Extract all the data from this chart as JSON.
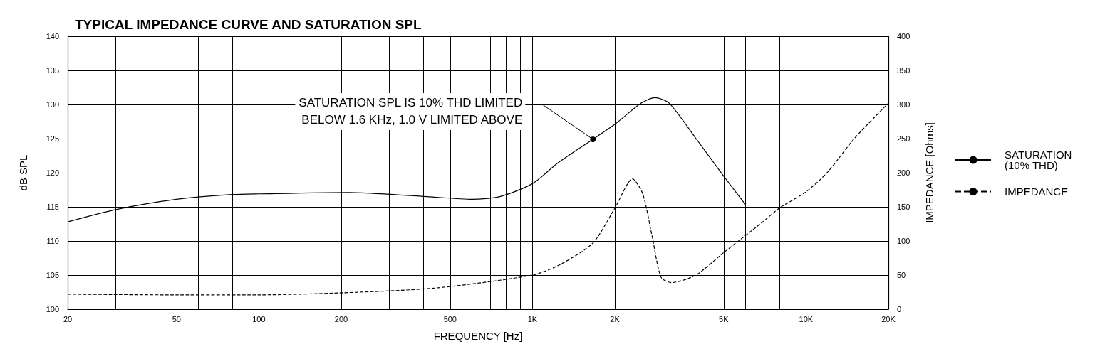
{
  "chart_data": {
    "type": "line",
    "title": "TYPICAL IMPEDANCE CURVE AND SATURATION SPL",
    "xlabel": "FREQUENCY [Hz]",
    "ylabel": "dB SPL",
    "y2label": "IMPEDANCE [Ohms]",
    "log": "x",
    "grid": true,
    "legend": "right",
    "marker": "none",
    "xlim": [
      20,
      20000
    ],
    "xticks": [
      20,
      {
        "value": 30,
        "label": null
      },
      {
        "value": 40,
        "label": null
      },
      50,
      {
        "value": 60,
        "label": null
      },
      {
        "value": 70,
        "label": null
      },
      {
        "value": 80,
        "label": null
      },
      {
        "value": 90,
        "label": null
      },
      100,
      200,
      {
        "value": 300,
        "label": null
      },
      {
        "value": 400,
        "label": null
      },
      500,
      {
        "value": 600,
        "label": null
      },
      {
        "value": 700,
        "label": null
      },
      {
        "value": 800,
        "label": null
      },
      {
        "value": 900,
        "label": null
      },
      {
        "value": 1000,
        "label": "1K"
      },
      {
        "value": 2000,
        "label": "2K"
      },
      {
        "value": 3000,
        "label": null
      },
      {
        "value": 4000,
        "label": null
      },
      {
        "value": 5000,
        "label": "5K"
      },
      {
        "value": 6000,
        "label": null
      },
      {
        "value": 7000,
        "label": null
      },
      {
        "value": 8000,
        "label": null
      },
      {
        "value": 9000,
        "label": null
      },
      {
        "value": 10000,
        "label": "10K"
      },
      {
        "value": 20000,
        "label": "20K"
      }
    ],
    "ylim": [
      100,
      140
    ],
    "yticks": [
      100,
      105,
      110,
      115,
      120,
      125,
      130,
      135,
      140
    ],
    "y2lim": [
      0,
      400
    ],
    "y2ticks": [
      0,
      50,
      100,
      150,
      200,
      250,
      300,
      350,
      400
    ],
    "series": [
      {
        "name": "SATURATION\n(10% THD)",
        "color": "#000000",
        "line_style": "solid",
        "x": [
          20,
          30,
          50,
          80,
          100,
          213,
          411,
          602,
          760,
          1000,
          1236,
          1663,
          2000,
          2496,
          2798,
          3160,
          3962,
          5000,
          5985
        ],
        "values": [
          112.8,
          114.6,
          116.1,
          116.8,
          116.9,
          117.1,
          116.5,
          116.1,
          116.5,
          118.4,
          121.4,
          124.9,
          127.1,
          130.2,
          131.0,
          130.2,
          125.0,
          119.5,
          115.4
        ]
      },
      {
        "name": "IMPEDANCE",
        "color": "#000000",
        "line_style": "dashed",
        "axis": "y2",
        "x": [
          20,
          50,
          100,
          200,
          440,
          1000,
          1270,
          1663,
          2000,
          2322,
          2530,
          2740,
          2950,
          3220,
          3960,
          5000,
          6900,
          8050,
          10000,
          12000,
          15000,
          20000
        ],
        "values": [
          22,
          21,
          21,
          24,
          31,
          50,
          66,
          97,
          148,
          191,
          169,
          106,
          47,
          39,
          50,
          83,
          127,
          149,
          172,
          201,
          250,
          302
        ]
      }
    ],
    "annotations": [
      {
        "text": "SATURATION SPL IS 10% THD LIMITED\nBELOW 1.6 KHz, 1.0 V LIMITED ABOVE",
        "x": 1663,
        "y": 124.9
      }
    ]
  }
}
